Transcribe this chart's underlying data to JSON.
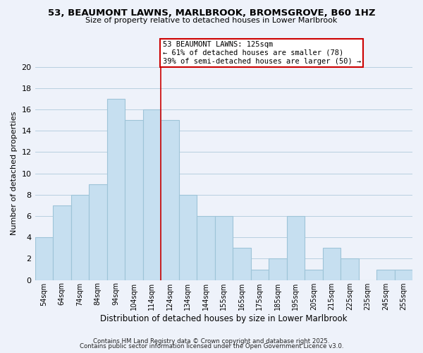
{
  "title": "53, BEAUMONT LAWNS, MARLBROOK, BROMSGROVE, B60 1HZ",
  "subtitle": "Size of property relative to detached houses in Lower Marlbrook",
  "xlabel": "Distribution of detached houses by size in Lower Marlbrook",
  "ylabel": "Number of detached properties",
  "bin_labels": [
    "54sqm",
    "64sqm",
    "74sqm",
    "84sqm",
    "94sqm",
    "104sqm",
    "114sqm",
    "124sqm",
    "134sqm",
    "144sqm",
    "155sqm",
    "165sqm",
    "175sqm",
    "185sqm",
    "195sqm",
    "205sqm",
    "215sqm",
    "225sqm",
    "235sqm",
    "245sqm",
    "255sqm"
  ],
  "bar_heights": [
    4,
    7,
    8,
    9,
    17,
    15,
    16,
    15,
    8,
    6,
    6,
    3,
    1,
    2,
    6,
    1,
    3,
    2,
    0,
    1,
    1
  ],
  "bar_color": "#c6dff0",
  "bar_edge_color": "#9ec4d8",
  "property_line_label": "53 BEAUMONT LAWNS: 125sqm",
  "annotation_line1": "← 61% of detached houses are smaller (78)",
  "annotation_line2": "39% of semi-detached houses are larger (50) →",
  "annotation_box_color": "#ffffff",
  "annotation_box_edge_color": "#cc0000",
  "vline_color": "#cc0000",
  "ylim": [
    0,
    20
  ],
  "yticks": [
    0,
    2,
    4,
    6,
    8,
    10,
    12,
    14,
    16,
    18,
    20
  ],
  "grid_color": "#b8cfe0",
  "background_color": "#eef2fa",
  "footer1": "Contains HM Land Registry data © Crown copyright and database right 2025.",
  "footer2": "Contains public sector information licensed under the Open Government Licence v3.0."
}
